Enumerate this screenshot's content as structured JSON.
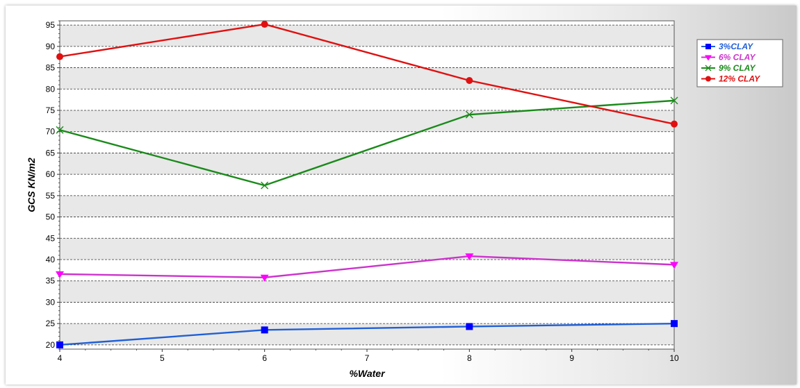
{
  "chart_data": {
    "type": "line",
    "xlabel": "%Water",
    "ylabel": "GCS KN/m2",
    "x": [
      4,
      6,
      8,
      10
    ],
    "xlim": [
      4,
      10
    ],
    "ylim": [
      19,
      96
    ],
    "yticks": [
      20,
      25,
      30,
      35,
      40,
      45,
      50,
      55,
      60,
      65,
      70,
      75,
      80,
      85,
      90,
      95
    ],
    "xticks": [
      4,
      5,
      6,
      7,
      8,
      9,
      10
    ],
    "grid": true,
    "legend_position": "top-right",
    "series": [
      {
        "name": "3%CLAY",
        "color": "#1f5fd6",
        "marker_color": "#0000ff",
        "marker": "square",
        "values": [
          20,
          23.5,
          24.3,
          25
        ]
      },
      {
        "name": "6% CLAY",
        "color": "#cc33cc",
        "marker_color": "#ff00ff",
        "marker": "triangle-down",
        "values": [
          36.6,
          35.8,
          40.8,
          38.8
        ]
      },
      {
        "name": "9% CLAY",
        "color": "#1a8a1a",
        "marker_color": "#1a8a1a",
        "marker": "x",
        "values": [
          70.4,
          57.4,
          74,
          77.3
        ]
      },
      {
        "name": "12% CLAY",
        "color": "#e01010",
        "marker_color": "#e01010",
        "marker": "circle",
        "values": [
          87.6,
          95.2,
          82,
          71.8
        ]
      }
    ]
  }
}
